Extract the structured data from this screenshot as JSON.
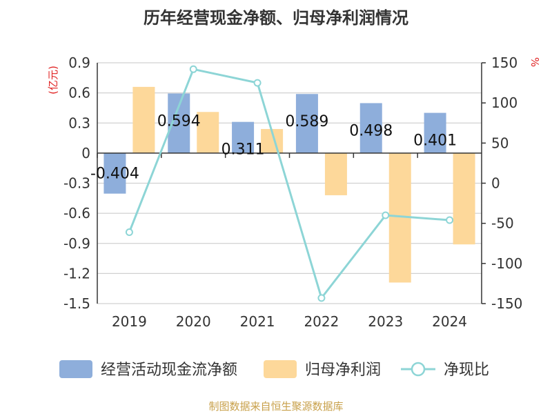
{
  "chart_data": {
    "type": "bar",
    "title": "历年经营现金净额、归母净利润情况",
    "categories": [
      "2019",
      "2020",
      "2021",
      "2022",
      "2023",
      "2024"
    ],
    "series": [
      {
        "name": "经营活动现金流净额",
        "axis": "left",
        "values": [
          -0.404,
          0.594,
          0.311,
          0.589,
          0.498,
          0.401
        ],
        "labels": [
          "-0.404",
          "0.594",
          "0.311",
          "0.589",
          "0.498",
          "0.401"
        ],
        "color": "#8eaedb"
      },
      {
        "name": "归母净利润",
        "axis": "left",
        "values": [
          0.66,
          0.41,
          0.24,
          -0.42,
          -1.29,
          -0.91
        ],
        "color": "#fdd89a"
      },
      {
        "name": "净现比",
        "axis": "right",
        "type": "line",
        "values": [
          -61,
          142,
          125,
          -143,
          -40,
          -46
        ],
        "color": "#8dd5d6"
      }
    ],
    "y_left": {
      "label": "亿元",
      "label_display": "(亿元)",
      "ylim": [
        -1.5,
        0.9
      ],
      "ticks": [
        "0.9",
        "0.6",
        "0.3",
        "0",
        "-0.3",
        "-0.6",
        "-0.9",
        "-1.2",
        "-1.5"
      ]
    },
    "y_right": {
      "label": "%",
      "ylim": [
        -150,
        150
      ],
      "ticks": [
        "150",
        "100",
        "50",
        "0",
        "-50",
        "-100",
        "-150"
      ]
    },
    "legend_position": "bottom",
    "grid": true
  },
  "source": "制图数据来自恒生聚源数据库",
  "colors": {
    "title": "#333333",
    "axis_unit": "#e02020",
    "source": "#c8a04a",
    "grid": "#d0d0d0",
    "axis": "#333333"
  }
}
